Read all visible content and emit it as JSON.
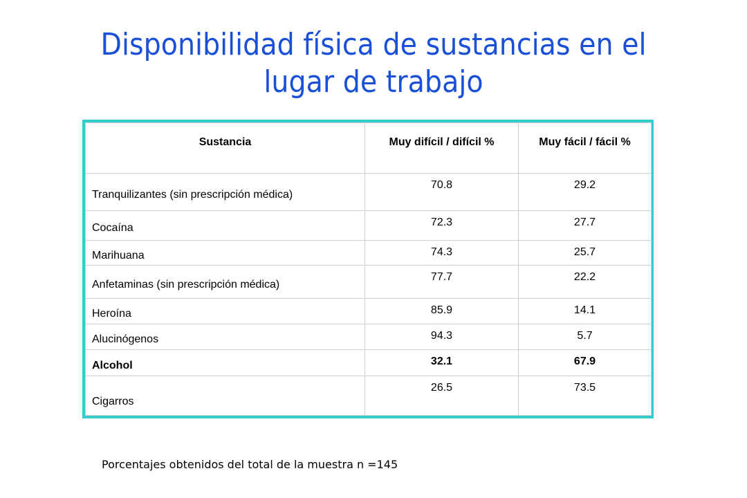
{
  "title": "Disponibilidad física de sustancias en el lugar de trabajo",
  "table": {
    "headers": [
      "Sustancia",
      "Muy difícil / difícil %",
      "Muy fácil / fácil %"
    ],
    "rows": [
      {
        "sustancia": "Tranquilizantes (sin prescripción médica)",
        "dificil": "70.8",
        "facil": "29.2",
        "bold": false
      },
      {
        "sustancia": "Cocaína",
        "dificil": "72.3",
        "facil": "27.7",
        "bold": false
      },
      {
        "sustancia": "Marihuana",
        "dificil": "74.3",
        "facil": "25.7",
        "bold": false
      },
      {
        "sustancia": "Anfetaminas (sin prescripción médica)",
        "dificil": "77.7",
        "facil": "22.2",
        "bold": false
      },
      {
        "sustancia": "Heroína",
        "dificil": "85.9",
        "facil": "14.1",
        "bold": false
      },
      {
        "sustancia": "Alucinógenos",
        "dificil": "94.3",
        "facil": "5.7",
        "bold": false
      },
      {
        "sustancia": "Alcohol",
        "dificil": "32.1",
        "facil": "67.9",
        "bold": true
      },
      {
        "sustancia": "Cigarros",
        "dificil": "26.5",
        "facil": "73.5",
        "bold": false
      }
    ]
  },
  "footnote": "Porcentajes obtenidos del total de la muestra n =145",
  "colors": {
    "title": "#1a4fd8",
    "table_border": "#33cccc"
  }
}
